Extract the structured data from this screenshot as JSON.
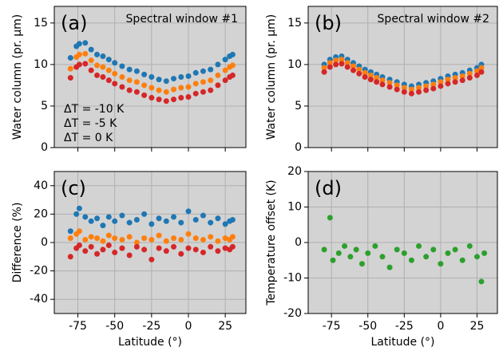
{
  "chart_data": [
    {
      "type": "scatter",
      "panel_label": "(a)",
      "title": "Spectral window #1",
      "ylabel": "Water column (pr. μm)",
      "x": [
        -80,
        -76,
        -74,
        -70,
        -66,
        -62,
        -58,
        -54,
        -50,
        -45,
        -40,
        -35,
        -30,
        -25,
        -20,
        -15,
        -10,
        -5,
        0,
        5,
        10,
        15,
        20,
        25,
        28,
        30
      ],
      "series": [
        {
          "name": "ΔT = -10 K",
          "color": "#1f77b4",
          "values": [
            10.8,
            12.2,
            12.5,
            12.6,
            11.8,
            11.2,
            11.0,
            10.6,
            10.2,
            9.8,
            9.4,
            9.2,
            8.8,
            8.5,
            8.2,
            8.0,
            8.3,
            8.5,
            8.6,
            9.0,
            9.2,
            9.4,
            10.0,
            10.6,
            11.0,
            11.2
          ]
        },
        {
          "name": "ΔT = -5 K",
          "color": "#ff7f0e",
          "values": [
            9.5,
            10.9,
            11.2,
            11.3,
            10.5,
            9.9,
            9.7,
            9.3,
            8.9,
            8.5,
            8.1,
            7.9,
            7.5,
            7.2,
            6.9,
            6.7,
            7.0,
            7.2,
            7.3,
            7.7,
            7.9,
            8.1,
            8.7,
            9.3,
            9.7,
            9.9
          ]
        },
        {
          "name": "ΔT = 0 K",
          "color": "#d62728",
          "values": [
            8.4,
            9.7,
            10.0,
            10.1,
            9.3,
            8.7,
            8.5,
            8.1,
            7.7,
            7.3,
            6.9,
            6.7,
            6.3,
            6.0,
            5.8,
            5.6,
            5.8,
            6.0,
            6.1,
            6.5,
            6.7,
            6.9,
            7.5,
            8.1,
            8.5,
            8.7
          ]
        }
      ],
      "xlim": [
        -91,
        39
      ],
      "ylim": [
        0,
        17
      ],
      "xticks": [
        -75,
        -50,
        -25,
        0,
        25
      ],
      "yticks": [
        0,
        5,
        10,
        15
      ],
      "grid": true,
      "legend": "lower left"
    },
    {
      "type": "scatter",
      "panel_label": "(b)",
      "title": "Spectral window #2",
      "ylabel": "Water column (pr. μm)",
      "x": [
        -80,
        -76,
        -72,
        -68,
        -64,
        -60,
        -56,
        -52,
        -48,
        -44,
        -40,
        -35,
        -30,
        -25,
        -20,
        -15,
        -10,
        -5,
        0,
        5,
        10,
        15,
        20,
        25,
        28
      ],
      "series": [
        {
          "name": "ΔT = -10 K",
          "color": "#1f77b4",
          "values": [
            10.0,
            10.6,
            10.9,
            11.0,
            10.6,
            10.2,
            9.8,
            9.4,
            9.1,
            8.8,
            8.5,
            8.2,
            7.9,
            7.6,
            7.4,
            7.6,
            7.8,
            8.0,
            8.3,
            8.6,
            8.8,
            9.0,
            9.3,
            9.6,
            10.0
          ]
        },
        {
          "name": "ΔT = -5 K",
          "color": "#ff7f0e",
          "values": [
            9.6,
            10.2,
            10.5,
            10.6,
            10.2,
            9.8,
            9.4,
            9.0,
            8.7,
            8.4,
            8.1,
            7.8,
            7.5,
            7.2,
            7.0,
            7.2,
            7.4,
            7.6,
            7.9,
            8.2,
            8.4,
            8.6,
            8.9,
            9.2,
            9.6
          ]
        },
        {
          "name": "ΔT = 0 K",
          "color": "#d62728",
          "values": [
            9.1,
            9.7,
            10.0,
            10.1,
            9.7,
            9.3,
            8.9,
            8.5,
            8.2,
            7.9,
            7.6,
            7.3,
            7.0,
            6.7,
            6.5,
            6.7,
            6.9,
            7.1,
            7.4,
            7.7,
            7.9,
            8.1,
            8.4,
            8.7,
            9.1
          ]
        }
      ],
      "xlim": [
        -91,
        39
      ],
      "ylim": [
        0,
        17
      ],
      "xticks": [
        -75,
        -50,
        -25,
        0,
        25
      ],
      "yticks": [
        0,
        5,
        10,
        15
      ],
      "grid": true
    },
    {
      "type": "scatter",
      "panel_label": "(c)",
      "ylabel": "Difference (%)",
      "xlabel": "Latitude (°)",
      "x": [
        -80,
        -76,
        -74,
        -70,
        -66,
        -62,
        -58,
        -54,
        -50,
        -45,
        -40,
        -35,
        -30,
        -25,
        -20,
        -15,
        -10,
        -5,
        0,
        5,
        10,
        15,
        20,
        25,
        28,
        30
      ],
      "series": [
        {
          "name": "ΔT = -10 K",
          "color": "#1f77b4",
          "values": [
            8,
            20,
            24,
            18,
            15,
            17,
            12,
            18,
            15,
            19,
            14,
            16,
            20,
            13,
            17,
            15,
            18,
            14,
            22,
            16,
            19,
            14,
            17,
            13,
            15,
            16
          ]
        },
        {
          "name": "ΔT = -5 K",
          "color": "#ff7f0e",
          "values": [
            3,
            6,
            8,
            2,
            4,
            3,
            1,
            5,
            3,
            2,
            4,
            0,
            3,
            2,
            5,
            1,
            3,
            2,
            6,
            3,
            2,
            4,
            1,
            3,
            2,
            4
          ]
        },
        {
          "name": "ΔT = 0 K",
          "color": "#d62728",
          "values": [
            -10,
            -4,
            -2,
            -6,
            -3,
            -8,
            -5,
            -2,
            -7,
            -4,
            -9,
            -3,
            -5,
            -12,
            -4,
            -6,
            -3,
            -8,
            -4,
            -5,
            -7,
            -3,
            -6,
            -4,
            -5,
            -3
          ]
        }
      ],
      "xlim": [
        -91,
        39
      ],
      "ylim": [
        -50,
        50
      ],
      "xticks": [
        -75,
        -50,
        -25,
        0,
        25
      ],
      "yticks": [
        -40,
        -20,
        0,
        20,
        40
      ],
      "grid": true
    },
    {
      "type": "scatter",
      "panel_label": "(d)",
      "ylabel": "Temperature offset (K)",
      "xlabel": "Latitude (°)",
      "x": [
        -80,
        -76,
        -74,
        -70,
        -66,
        -62,
        -58,
        -54,
        -50,
        -45,
        -40,
        -35,
        -30,
        -25,
        -20,
        -15,
        -10,
        -5,
        0,
        5,
        10,
        15,
        20,
        25,
        28,
        30
      ],
      "series": [
        {
          "name": "Temperature offset",
          "color": "#2ca02c",
          "values": [
            -2,
            7,
            -5,
            -3,
            -1,
            -4,
            -2,
            -6,
            -3,
            -1,
            -4,
            -7,
            -2,
            -3,
            -5,
            -1,
            -4,
            -2,
            -6,
            -3,
            -2,
            -5,
            -1,
            -4,
            -11,
            -3
          ]
        }
      ],
      "xlim": [
        -91,
        39
      ],
      "ylim": [
        -20,
        20
      ],
      "xticks": [
        -75,
        -50,
        -25,
        0,
        25
      ],
      "yticks": [
        -20,
        -10,
        0,
        10,
        20
      ],
      "grid": true
    }
  ]
}
